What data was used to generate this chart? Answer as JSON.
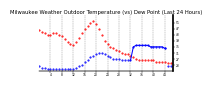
{
  "title": "Milwaukee Weather Outdoor Temperature (vs) Dew Point (Last 24 Hours)",
  "title_fontsize": 3.8,
  "background_color": "#ffffff",
  "temp_color": "#ff0000",
  "dew_color": "#0000ff",
  "grid_color": "#888888",
  "ylabel_right_values": [
    51,
    47,
    43,
    39,
    35,
    31,
    27,
    23
  ],
  "ylim": [
    19,
    56
  ],
  "xlim": [
    0,
    47
  ],
  "temp_data": [
    46,
    45,
    44,
    43,
    43,
    44,
    44,
    43,
    42,
    40,
    38,
    37,
    36,
    38,
    41,
    44,
    47,
    49,
    51,
    52,
    50,
    47,
    43,
    39,
    37,
    35,
    34,
    33,
    32,
    31,
    30,
    30,
    29,
    28,
    27,
    26,
    26,
    26,
    26,
    26,
    26,
    25,
    25,
    25,
    25,
    24,
    24
  ],
  "dew_data": [
    22,
    21,
    21,
    20,
    20,
    20,
    20,
    20,
    20,
    20,
    20,
    20,
    20,
    21,
    22,
    23,
    25,
    26,
    28,
    29,
    30,
    31,
    31,
    30,
    29,
    28,
    27,
    27,
    27,
    26,
    26,
    26,
    26,
    35,
    36,
    36,
    36,
    36,
    36,
    35,
    35,
    35,
    35,
    35,
    34,
    22,
    22
  ],
  "vgrid_positions": [
    4,
    8,
    12,
    16,
    20,
    24,
    28,
    32,
    36,
    40,
    44
  ],
  "xlabel_labels": [
    "4",
    "8",
    "12",
    "16",
    "20",
    "24",
    "28",
    "32",
    "36",
    "40",
    "44"
  ],
  "marker_size": 1.0,
  "linewidth": 0.5,
  "dew_solid_start": 32,
  "dew_solid_end": 44
}
